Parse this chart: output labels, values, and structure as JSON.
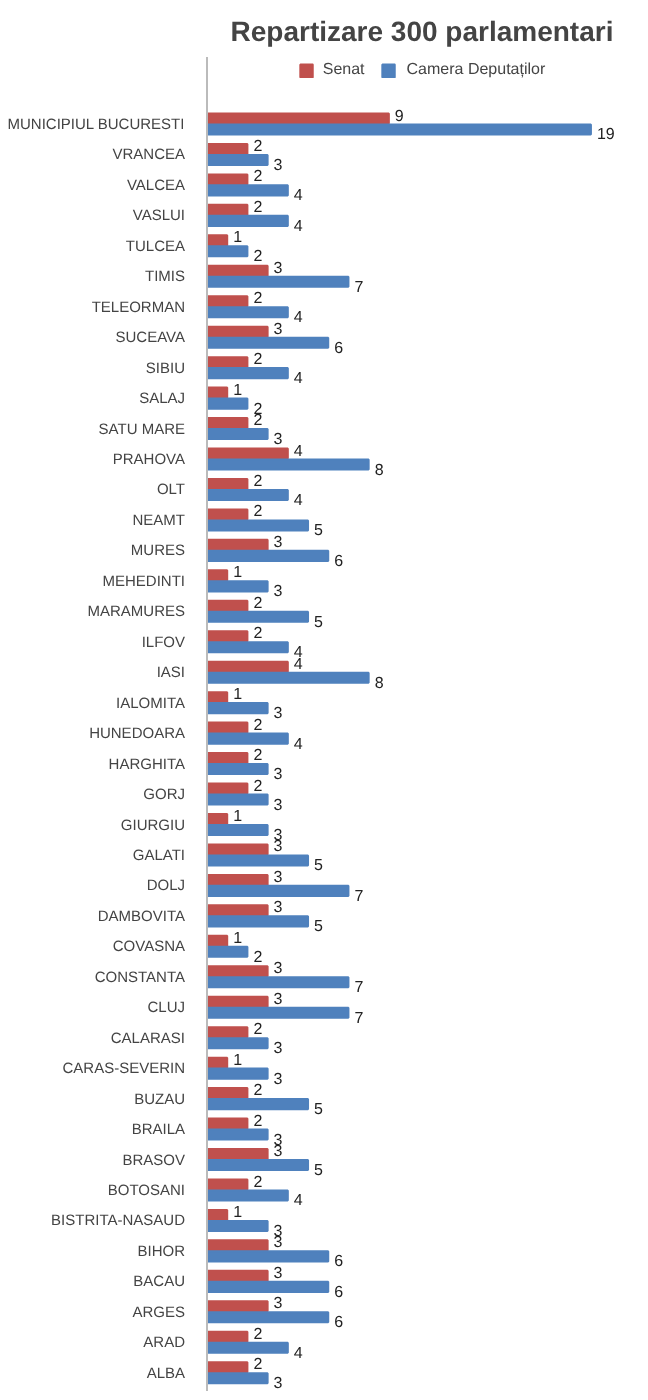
{
  "chart_data": {
    "type": "bar",
    "orientation": "horizontal",
    "title": "Repartizare 300 parlamentari",
    "legend": "top",
    "data_labels": true,
    "categories": [
      "MUNICIPIUL BUCURESTI",
      "VRANCEA",
      "VALCEA",
      "VASLUI",
      "TULCEA",
      "TIMIS",
      "TELEORMAN",
      "SUCEAVA",
      "SIBIU",
      "SALAJ",
      "SATU MARE",
      "PRAHOVA",
      "OLT",
      "NEAMT",
      "MURES",
      "MEHEDINTI",
      "MARAMURES",
      "ILFOV",
      "IASI",
      "IALOMITA",
      "HUNEDOARA",
      "HARGHITA",
      "GORJ",
      "GIURGIU",
      "GALATI",
      "DOLJ",
      "DAMBOVITA",
      "COVASNA",
      "CONSTANTA",
      "CLUJ",
      "CALARASI",
      "CARAS-SEVERIN",
      "BUZAU",
      "BRAILA",
      "BRASOV",
      "BOTOSANI",
      "BISTRITA-NASAUD",
      "BIHOR",
      "BACAU",
      "ARGES",
      "ARAD",
      "ALBA"
    ],
    "series": [
      {
        "name": "Senat",
        "color": "#c0504d",
        "values": [
          9,
          2,
          2,
          2,
          1,
          3,
          2,
          3,
          2,
          1,
          2,
          4,
          2,
          2,
          3,
          1,
          2,
          2,
          4,
          1,
          2,
          2,
          2,
          1,
          3,
          3,
          3,
          1,
          3,
          3,
          2,
          1,
          2,
          2,
          3,
          2,
          1,
          3,
          3,
          3,
          2,
          2
        ]
      },
      {
        "name": "Camera Deputaților",
        "color": "#4f81bd",
        "values": [
          19,
          3,
          4,
          4,
          2,
          7,
          4,
          6,
          4,
          2,
          3,
          8,
          4,
          5,
          6,
          3,
          5,
          4,
          8,
          3,
          4,
          3,
          3,
          3,
          5,
          7,
          5,
          2,
          7,
          7,
          3,
          3,
          5,
          3,
          5,
          4,
          3,
          6,
          6,
          6,
          4,
          3
        ]
      }
    ]
  }
}
